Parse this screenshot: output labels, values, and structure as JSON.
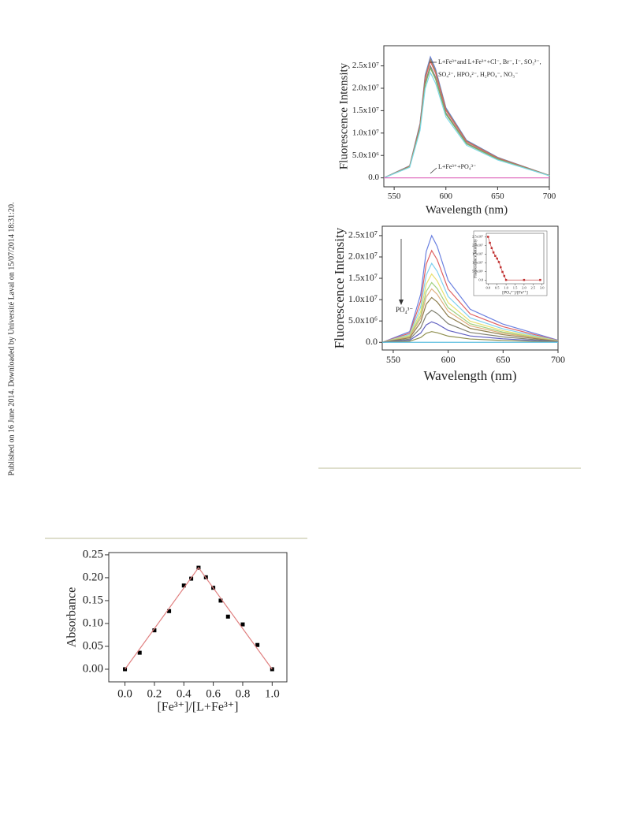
{
  "side_note": "Published on 16 June 2014. Downloaded by Université Laval on 15/07/2014 18:31:20.",
  "chart_data": [
    {
      "type": "line",
      "xlabel": "Wavelength (nm)",
      "ylabel": "Fluorescence Intensity",
      "annotations": [
        "L+Fe³⁺and L+Fe³⁺+Cl⁻, Br⁻, I⁻, SO₃²⁻,",
        "SO₄²⁻, HPO₄²⁻, H₂PO₄⁻, NO₃⁻",
        "L+Fe³⁺+PO₄³⁻"
      ],
      "x": [
        540,
        565,
        575,
        580,
        585,
        590,
        600,
        620,
        650,
        700
      ],
      "xlim": [
        540,
        700
      ],
      "xticks": [
        550,
        600,
        650,
        700
      ],
      "ylim": [
        -2000000,
        29500000
      ],
      "yticks": [
        {
          "value": 0,
          "label": "0.0"
        },
        {
          "value": 5000000,
          "label": "5.0x10⁶"
        },
        {
          "value": 10000000,
          "label": "1.0x10⁷"
        },
        {
          "value": 15000000,
          "label": "1.5x10⁷"
        },
        {
          "value": 20000000,
          "label": "2.0x10⁷"
        },
        {
          "value": 25000000,
          "label": "2.5x10⁷"
        }
      ],
      "series": [
        {
          "color": "#6a7fd8",
          "values": [
            0,
            2700000.0,
            12150000.0,
            22950000.0,
            27000000.0,
            24300000.0,
            15660000.0,
            8370000.0,
            4590000.0,
            540000.0
          ]
        },
        {
          "color": "#909060",
          "values": [
            0,
            2650000.0,
            11925000.0,
            22525000.0,
            26500000.0,
            23850000.0,
            15370000.0,
            8215000.0,
            4505000.0,
            530000.0
          ]
        },
        {
          "color": "#e06060",
          "values": [
            0,
            2600000.0,
            11700000.0,
            22100000.0,
            26000000.0,
            23400000.0,
            15080000.0,
            8060000.0,
            4420000.0,
            520000.0
          ]
        },
        {
          "color": "#808080",
          "values": [
            0,
            2500000.0,
            11250000.0,
            21250000.0,
            25000000.0,
            22500000.0,
            14500000.0,
            7750000.0,
            4250000.0,
            500000.0
          ]
        },
        {
          "color": "#80b060",
          "values": [
            0,
            2450000.0,
            11025000.0,
            20825000.0,
            24500000.0,
            22050000.0,
            14210000.0,
            7595000.0,
            4165000.0,
            490000.0
          ]
        },
        {
          "color": "#80d8e8",
          "values": [
            0,
            2350000.0,
            10575000.0,
            19975000.0,
            23500000.0,
            21150000.0,
            13630000.0,
            7285000.0,
            3995000.0,
            470000.0
          ]
        },
        {
          "color": "#e070c0",
          "values": [
            0,
            0,
            0,
            0,
            0,
            0,
            0,
            0,
            0,
            0
          ]
        }
      ]
    },
    {
      "type": "line",
      "xlabel": "Wavelength (nm)",
      "ylabel": "Fluorescence Intensity",
      "annotations": [
        "PO₄³⁻"
      ],
      "x": [
        540,
        565,
        575,
        580,
        585,
        590,
        600,
        620,
        650,
        700
      ],
      "xlim": [
        540,
        700
      ],
      "xticks": [
        550,
        600,
        650,
        700
      ],
      "ylim": [
        -1800000,
        27200000
      ],
      "yticks": [
        {
          "value": 0,
          "label": "0.0"
        },
        {
          "value": 5000000,
          "label": "5.0x10⁶"
        },
        {
          "value": 10000000,
          "label": "1.0x10⁷"
        },
        {
          "value": 15000000,
          "label": "1.5x10⁷"
        },
        {
          "value": 20000000,
          "label": "2.0x10⁷"
        },
        {
          "value": 25000000,
          "label": "2.5x10⁷"
        }
      ],
      "series": [
        {
          "color": "#6a80e0",
          "values": [
            0,
            2500000.0,
            11250000.0,
            21250000.0,
            25000000.0,
            22500000.0,
            14500000.0,
            7750000.0,
            4250000.0,
            500000.0
          ]
        },
        {
          "color": "#e06060",
          "values": [
            0,
            2150000.0,
            9675000.0,
            18275000.0,
            21500000.0,
            19350000.0,
            12470000.0,
            6665000.0,
            3655000.0,
            430000.0
          ]
        },
        {
          "color": "#80d0f0",
          "values": [
            0,
            1850000.0,
            8325000.0,
            15725000.0,
            18500000.0,
            16650000.0,
            10730000.0,
            5735000.0,
            3145000.0,
            370000.0
          ]
        },
        {
          "color": "#e8e070",
          "values": [
            0,
            1600000.0,
            7200000.0,
            13600000.0,
            16000000.0,
            14400000.0,
            9280000.0,
            4960000.0,
            2720000.0,
            320000.0
          ]
        },
        {
          "color": "#a0d080",
          "values": [
            0,
            1400000.0,
            6300000.0,
            11900000.0,
            14000000.0,
            12600000.0,
            8120000.0,
            4340000.0,
            2380000.0,
            280000.0
          ]
        },
        {
          "color": "#e0b080",
          "values": [
            0,
            1250000.0,
            5625000.0,
            10625000.0,
            12500000.0,
            11250000.0,
            7250000.0,
            3875000.0,
            2125000.0,
            250000.0
          ]
        },
        {
          "color": "#908050",
          "values": [
            0,
            1050000.0,
            4725000.0,
            8925000.0,
            10500000.0,
            9450000.0,
            6090000.0,
            3255000.0,
            1785000.0,
            210000.0
          ]
        },
        {
          "color": "#808070",
          "values": [
            0,
            750000.0,
            3375000.0,
            6375000.0,
            7500000.0,
            6750000.0,
            4350000.0,
            2325000.0,
            1275000.0,
            150000.0
          ]
        },
        {
          "color": "#6060c0",
          "values": [
            0,
            480000.0,
            2160000.0,
            4080000.0,
            4800000.0,
            4320000.0,
            2784000.0,
            1488000.0,
            816000.0,
            96000.0
          ]
        },
        {
          "color": "#909050",
          "values": [
            0,
            250000.0,
            1125000.0,
            2125000.0,
            2500000.0,
            2250000.0,
            1450000.0,
            775000.0,
            425000.0,
            50000.0
          ]
        },
        {
          "color": "#60c0e0",
          "values": [
            0,
            0,
            0,
            0,
            0,
            0,
            0,
            0,
            0,
            0
          ]
        }
      ]
    },
    {
      "type": "scatter",
      "xlabel": "[Fe³⁺]/[L+Fe³⁺]",
      "ylabel": "Absorbance",
      "xlim": [
        -0.11,
        1.1
      ],
      "xticks": [
        {
          "value": 0,
          "label": "0.0"
        },
        0.2,
        0.4,
        0.6,
        0.8,
        {
          "value": 1,
          "label": "1.0"
        }
      ],
      "ylim": [
        -0.0276,
        0.255
      ],
      "yticks": [
        {
          "value": 0,
          "label": "0.00"
        },
        0.05,
        {
          "value": 0.1,
          "label": "0.10"
        },
        0.15,
        {
          "value": 0.2,
          "label": "0.20"
        },
        0.25
      ],
      "series": [
        {
          "color": "#000000",
          "marker": "square",
          "line": false,
          "x": [
            0,
            0.1,
            0.2,
            0.3,
            0.4,
            0.45,
            0.5,
            0.55,
            0.6,
            0.65,
            0.7,
            0.8,
            0.9,
            1.0
          ],
          "values": [
            0.0,
            0.036,
            0.085,
            0.127,
            0.183,
            0.198,
            0.222,
            0.201,
            0.178,
            0.15,
            0.115,
            0.098,
            0.053,
            0.0
          ]
        },
        {
          "color": "#e08080",
          "marker": "none",
          "line": true,
          "x": [
            0,
            0.5,
            1.0
          ],
          "values": [
            0.0,
            0.222,
            0.0
          ]
        }
      ]
    },
    {
      "type": "scatter",
      "xlabel": "[PO₄³⁻]/[Fe³⁺]",
      "ylabel": "Fluorescence Intensity",
      "xlim": [
        -0.1,
        3.1
      ],
      "xticks": [
        {
          "value": 0,
          "label": "0.0"
        },
        0.5,
        {
          "value": 1,
          "label": "1.0"
        },
        1.5,
        {
          "value": 2,
          "label": "2.0"
        },
        2.5,
        {
          "value": 3,
          "label": "3.0"
        }
      ],
      "ylim": [
        -2000000,
        27000000
      ],
      "yticks": [
        {
          "value": 0,
          "label": "0.0"
        },
        {
          "value": 5000000,
          "label": "5.0x10⁶"
        },
        {
          "value": 10000000,
          "label": "1.0x10⁷"
        },
        {
          "value": 15000000,
          "label": "1.5x10⁷"
        },
        {
          "value": 20000000,
          "label": "2.0x10⁷"
        },
        {
          "value": 25000000,
          "label": "2.5x10⁷"
        }
      ],
      "series": [
        {
          "color": "#c03030",
          "marker": "square",
          "line": true,
          "x": [
            0,
            0.1,
            0.2,
            0.3,
            0.4,
            0.5,
            0.6,
            0.7,
            0.8,
            0.9,
            1.0,
            2.0,
            2.9
          ],
          "values": [
            25000000.0,
            21500000.0,
            18500000.0,
            16000000.0,
            14000000.0,
            12500000.0,
            10500000.0,
            7500000.0,
            4800000.0,
            2500000.0,
            200000.0,
            200000.0,
            200000.0
          ]
        }
      ]
    }
  ]
}
